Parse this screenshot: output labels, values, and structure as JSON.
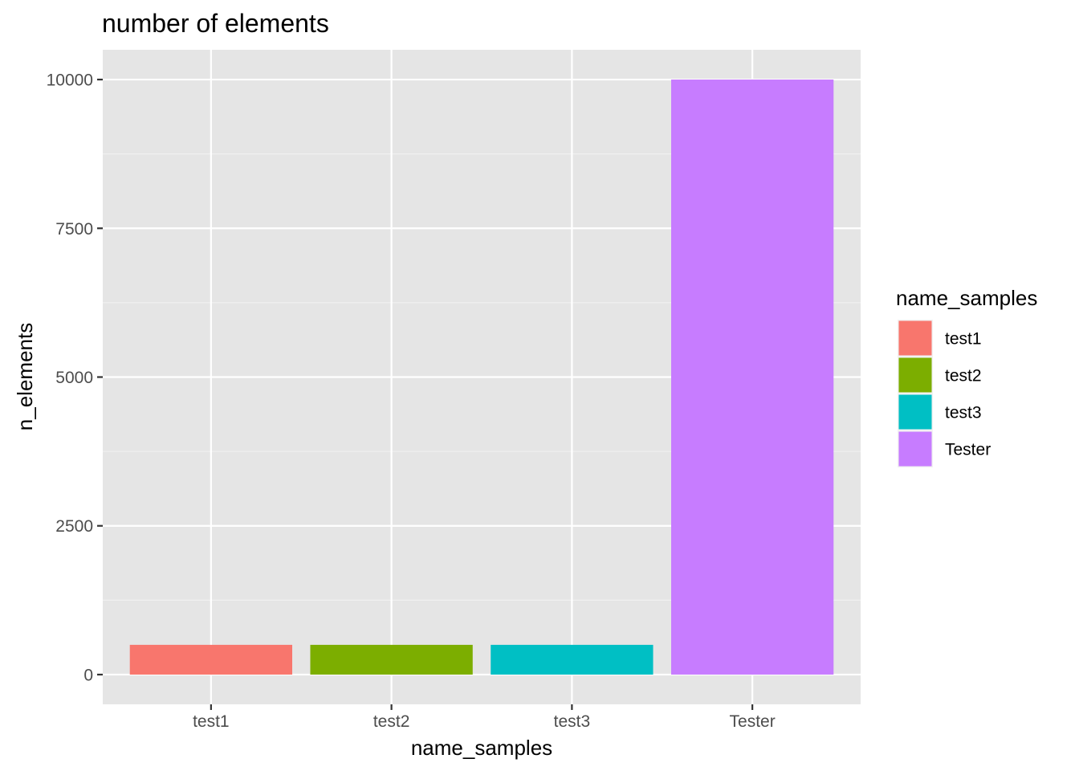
{
  "chart_data": {
    "type": "bar",
    "title": "number of elements",
    "xlabel": "name_samples",
    "ylabel": "n_elements",
    "categories": [
      "test1",
      "test2",
      "test3",
      "Tester"
    ],
    "values": [
      500,
      500,
      500,
      10000
    ],
    "colors": [
      "#F8766D",
      "#7CAE00",
      "#00BFC4",
      "#C77CFF"
    ],
    "ylim": [
      -500,
      10500
    ],
    "yticks": [
      0,
      2500,
      5000,
      7500,
      10000
    ],
    "ytick_labels": [
      "0",
      "2500",
      "5000",
      "7500",
      "10000"
    ],
    "grid": true,
    "background": "#E5E5E5",
    "legend": {
      "title": "name_samples",
      "placement": "right",
      "entries": [
        "test1",
        "test2",
        "test3",
        "Tester"
      ]
    }
  }
}
